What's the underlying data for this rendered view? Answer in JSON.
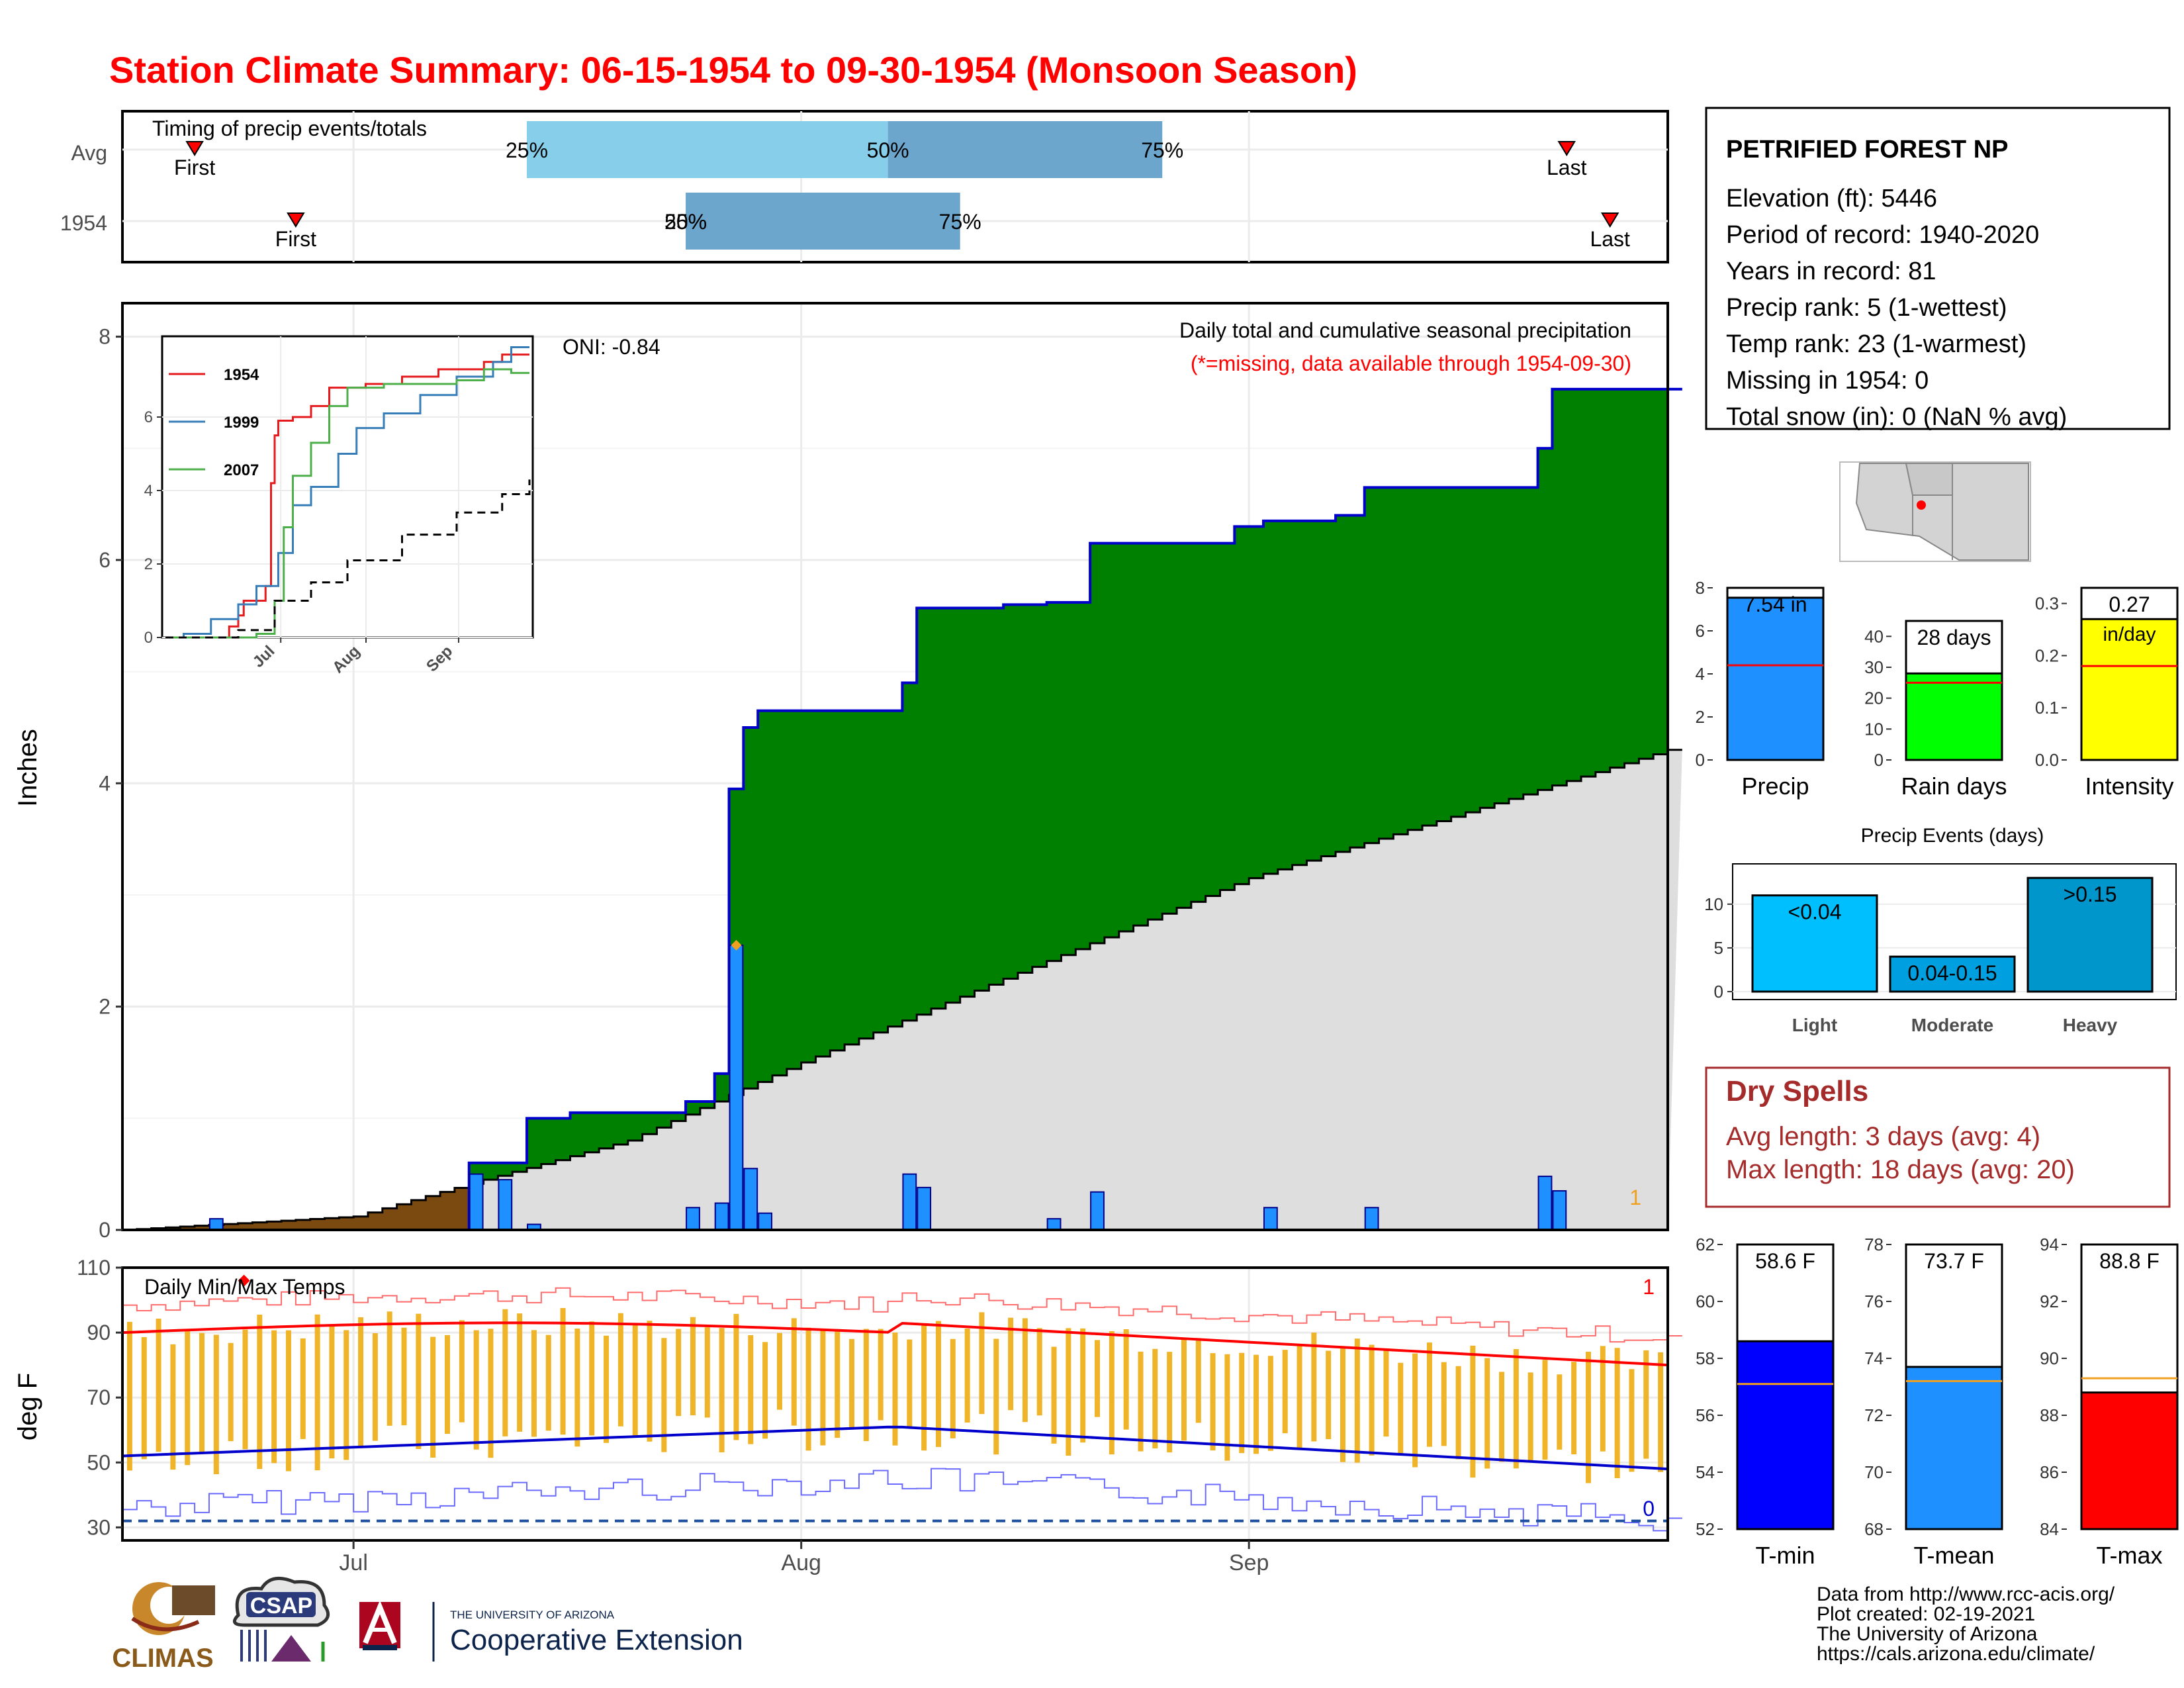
{
  "page_title": "Station Climate Summary: 06-15-1954 to 09-30-1954 (Monsoon Season)",
  "month_ticks": [
    "Jul",
    "Aug",
    "Sep"
  ],
  "timing": {
    "label": "Timing of precip events/totals",
    "rows": [
      "Avg",
      "1954"
    ],
    "first_label": "First",
    "last_label": "Last",
    "avg": {
      "first_day": 5,
      "q25": 28,
      "q50": 53,
      "q75": 72,
      "last_day": 100
    },
    "y1954": {
      "first_day": 12,
      "q25": 39,
      "q50": 39,
      "q75": 58,
      "last_day": 103
    },
    "avg_q25_label": "25%",
    "avg_q50_label": "50%",
    "avg_q75_label": "75%",
    "y1954_q25_label": "25%",
    "y1954_q50_label": "50%",
    "y1954_q75_label": "75%"
  },
  "precip_panel": {
    "ylabel": "Inches",
    "annotation_line1": "Daily total and cumulative seasonal precipitation",
    "annotation_line2": "(*=missing, data available through 1954-09-30)",
    "oni_label": "ONI: -0.84",
    "corner_count": "1",
    "yticks": [
      "0",
      "2",
      "4",
      "6",
      "8"
    ]
  },
  "temp_panel": {
    "title": "Daily Min/Max Temps",
    "ylabel": "deg F",
    "yticks": [
      "30",
      "50",
      "70",
      "90",
      "110"
    ],
    "count_high": "1",
    "count_low": "0"
  },
  "station": {
    "name": "PETRIFIED FOREST NP",
    "lines": [
      "Elevation (ft): 5446",
      "Period of record: 1940-2020",
      "Years in record: 81",
      "Precip rank: 5 (1-wettest)",
      "Temp rank: 23 (1-warmest)",
      "Missing in 1954: 0",
      "Total snow (in): 0 (NaN % avg)"
    ]
  },
  "dry_spells": {
    "title": "Dry Spells",
    "avg_line": "Avg length: 3 days (avg: 4)",
    "max_line": "Max length: 18 days (avg: 20)"
  },
  "credits": {
    "lines": [
      "Data from http://www.rcc-acis.org/",
      "Plot created: 02-19-2021",
      "The University of Arizona",
      "https://cals.arizona.edu/climate/"
    ],
    "climas": "CLIMAS",
    "csap": "CSAP",
    "ua_small": "THE UNIVERSITY OF ARIZONA",
    "ua_big": "Cooperative Extension"
  },
  "colors": {
    "title": "#ff0000",
    "green_fill": "#008000",
    "brown_fill": "#7a4a10",
    "avg_fill": "#dedede",
    "daily_bar": "#1e90ff",
    "temp_bar": "#f0b428",
    "precip_box": "#1e90ff",
    "raindays_box": "#00ff00",
    "intensity_box": "#ffff00",
    "tmin_box": "#0000ff",
    "tmean_box": "#1e90ff",
    "tmax_box": "#ff0000",
    "dry_spell_text": "#a52a2a"
  },
  "chart_data": [
    {
      "type": "area",
      "title": "Daily total and cumulative seasonal precipitation",
      "ylabel": "Inches",
      "ylim": [
        0,
        8.3
      ],
      "x_start": "1954-06-15",
      "x_end": "1954-09-30",
      "cumulative_1954_steps": [
        {
          "date": "1954-06-15",
          "value": 0.0
        },
        {
          "date": "1954-06-21",
          "value": 0.0
        },
        {
          "date": "1954-07-09",
          "value": 0.6
        },
        {
          "date": "1954-07-11",
          "value": 0.6
        },
        {
          "date": "1954-07-13",
          "value": 1.0
        },
        {
          "date": "1954-07-16",
          "value": 1.05
        },
        {
          "date": "1954-07-24",
          "value": 1.15
        },
        {
          "date": "1954-07-26",
          "value": 1.4
        },
        {
          "date": "1954-07-27",
          "value": 3.95
        },
        {
          "date": "1954-07-28",
          "value": 4.5
        },
        {
          "date": "1954-07-29",
          "value": 4.65
        },
        {
          "date": "1954-08-08",
          "value": 4.9
        },
        {
          "date": "1954-08-09",
          "value": 5.57
        },
        {
          "date": "1954-08-15",
          "value": 5.6
        },
        {
          "date": "1954-08-18",
          "value": 5.62
        },
        {
          "date": "1954-08-21",
          "value": 6.15
        },
        {
          "date": "1954-08-31",
          "value": 6.3
        },
        {
          "date": "1954-09-02",
          "value": 6.35
        },
        {
          "date": "1954-09-07",
          "value": 6.4
        },
        {
          "date": "1954-09-09",
          "value": 6.65
        },
        {
          "date": "1954-09-21",
          "value": 7.0
        },
        {
          "date": "1954-09-22",
          "value": 7.53
        },
        {
          "date": "1954-09-30",
          "value": 7.53
        }
      ],
      "average_cumulative": [
        {
          "date": "1954-06-15",
          "value": 0.0
        },
        {
          "date": "1954-07-01",
          "value": 0.12
        },
        {
          "date": "1954-07-10",
          "value": 0.45
        },
        {
          "date": "1954-07-20",
          "value": 0.8
        },
        {
          "date": "1954-08-01",
          "value": 1.5
        },
        {
          "date": "1954-08-15",
          "value": 2.25
        },
        {
          "date": "1954-09-01",
          "value": 3.15
        },
        {
          "date": "1954-09-15",
          "value": 3.7
        },
        {
          "date": "1954-09-30",
          "value": 4.3
        }
      ],
      "daily_precip": [
        {
          "date": "1954-06-21",
          "value": 0.1
        },
        {
          "date": "1954-07-09",
          "value": 0.5
        },
        {
          "date": "1954-07-11",
          "value": 0.45
        },
        {
          "date": "1954-07-13",
          "value": 0.05
        },
        {
          "date": "1954-07-24",
          "value": 0.2
        },
        {
          "date": "1954-07-26",
          "value": 0.24
        },
        {
          "date": "1954-07-27",
          "value": 2.55
        },
        {
          "date": "1954-07-28",
          "value": 0.55
        },
        {
          "date": "1954-07-29",
          "value": 0.15
        },
        {
          "date": "1954-08-08",
          "value": 0.5
        },
        {
          "date": "1954-08-09",
          "value": 0.38
        },
        {
          "date": "1954-08-18",
          "value": 0.1
        },
        {
          "date": "1954-08-21",
          "value": 0.34
        },
        {
          "date": "1954-09-02",
          "value": 0.2
        },
        {
          "date": "1954-09-09",
          "value": 0.2
        },
        {
          "date": "1954-09-21",
          "value": 0.48
        },
        {
          "date": "1954-09-22",
          "value": 0.35
        }
      ]
    },
    {
      "type": "line",
      "title": "",
      "xticks": [
        "Jul",
        "Aug",
        "Sep"
      ],
      "yticks": [
        "0",
        "2",
        "4",
        "6"
      ],
      "ylim": [
        0,
        8
      ],
      "series": [
        {
          "name": "1954",
          "color": "#e41a1c",
          "points": [
            [
              0,
              0
            ],
            [
              20,
              0
            ],
            [
              35,
              0.3
            ],
            [
              40,
              0.6
            ],
            [
              43,
              1.0
            ],
            [
              55,
              1.4
            ],
            [
              58,
              4.2
            ],
            [
              60,
              5.5
            ],
            [
              62,
              5.9
            ],
            [
              70,
              6.0
            ],
            [
              80,
              6.3
            ],
            [
              90,
              6.8
            ],
            [
              110,
              6.9
            ],
            [
              130,
              7.1
            ],
            [
              150,
              7.3
            ],
            [
              175,
              7.5
            ],
            [
              185,
              7.7
            ],
            [
              200,
              7.7
            ]
          ]
        },
        {
          "name": "1999",
          "color": "#377eb8",
          "points": [
            [
              0,
              0
            ],
            [
              10,
              0.1
            ],
            [
              25,
              0.5
            ],
            [
              40,
              0.9
            ],
            [
              50,
              1.4
            ],
            [
              62,
              2.3
            ],
            [
              70,
              3.6
            ],
            [
              80,
              4.1
            ],
            [
              95,
              5.0
            ],
            [
              105,
              5.7
            ],
            [
              120,
              6.1
            ],
            [
              140,
              6.6
            ],
            [
              160,
              7.1
            ],
            [
              180,
              7.5
            ],
            [
              190,
              7.9
            ],
            [
              200,
              7.9
            ]
          ]
        },
        {
          "name": "2007",
          "color": "#4daf4a",
          "points": [
            [
              0,
              0
            ],
            [
              50,
              0.1
            ],
            [
              60,
              1.0
            ],
            [
              65,
              3.0
            ],
            [
              70,
              4.4
            ],
            [
              80,
              5.3
            ],
            [
              90,
              6.3
            ],
            [
              100,
              6.8
            ],
            [
              120,
              6.9
            ],
            [
              140,
              6.9
            ],
            [
              160,
              7.0
            ],
            [
              175,
              7.3
            ],
            [
              190,
              7.2
            ],
            [
              200,
              7.2
            ]
          ]
        },
        {
          "name": "",
          "color": "#000000",
          "dashed": true,
          "points": [
            [
              0,
              0
            ],
            [
              40,
              0.2
            ],
            [
              60,
              1.0
            ],
            [
              80,
              1.5
            ],
            [
              100,
              2.1
            ],
            [
              130,
              2.8
            ],
            [
              160,
              3.4
            ],
            [
              185,
              3.9
            ],
            [
              200,
              4.3
            ]
          ]
        }
      ]
    },
    {
      "type": "bar",
      "categories": [
        "Precip",
        "Rain days",
        "Intensity"
      ],
      "values": [
        7.54,
        28,
        0.27
      ],
      "averages": [
        4.4,
        25,
        0.18
      ],
      "value_labels": [
        "7.54 in",
        "28 days",
        "0.27"
      ],
      "unit_label": "in/day",
      "ylims": [
        [
          0,
          8
        ],
        [
          0,
          45
        ],
        [
          0,
          0.33
        ]
      ],
      "ytick_sets": [
        [
          "0",
          "2",
          "4",
          "6",
          "8"
        ],
        [
          "0",
          "10",
          "20",
          "30",
          "40"
        ],
        [
          "0.0",
          "0.1",
          "0.2",
          "0.3"
        ]
      ]
    },
    {
      "type": "bar",
      "title": "Precip Events (days)",
      "categories": [
        "Light",
        "Moderate",
        "Heavy"
      ],
      "values": [
        11,
        4,
        13
      ],
      "bar_labels": [
        "<0.04",
        "0.04-0.15",
        ">0.15"
      ],
      "ylim": [
        0,
        14
      ],
      "yticks": [
        "0",
        "5",
        "10"
      ]
    },
    {
      "type": "bar",
      "categories": [
        "T-min",
        "T-mean",
        "T-max"
      ],
      "values": [
        58.6,
        73.7,
        88.8
      ],
      "averages": [
        57.1,
        73.2,
        89.3
      ],
      "value_labels": [
        "58.6 F",
        "73.7 F",
        "88.8 F"
      ],
      "ylims": [
        [
          52,
          62
        ],
        [
          68,
          78
        ],
        [
          84,
          94
        ]
      ],
      "ytick_sets": [
        [
          "52",
          "54",
          "56",
          "58",
          "60",
          "62"
        ],
        [
          "68",
          "70",
          "72",
          "74",
          "76",
          "78"
        ],
        [
          "84",
          "86",
          "88",
          "90",
          "92",
          "94"
        ]
      ]
    },
    {
      "type": "bar",
      "title": "Daily Min/Max Temps",
      "ylabel": "deg F",
      "ylim": [
        26,
        110
      ],
      "note": "daily min-to-max temperature bars with average max (red) and average min (blue) lines",
      "avg_max_start": 90,
      "avg_max_peak": 93,
      "avg_max_end": 80,
      "avg_min_start": 52,
      "avg_min_peak": 61,
      "avg_min_end": 48,
      "record_low_line": 32
    }
  ]
}
